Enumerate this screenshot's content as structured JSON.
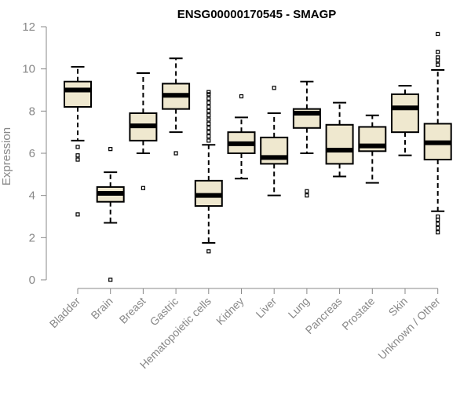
{
  "chart_data": {
    "type": "box",
    "title": "ENSG00000170545 - SMAGP",
    "xlabel": "",
    "ylabel": "Expression",
    "ylim": [
      0,
      12
    ],
    "yticks": [
      0,
      2,
      4,
      6,
      8,
      10,
      12
    ],
    "grid": false,
    "categories": [
      "Bladder",
      "Brain",
      "Breast",
      "Gastric",
      "Hematopoietic cells",
      "Kidney",
      "Liver",
      "Lung",
      "Pancreas",
      "Prostate",
      "Skin",
      "Unknown / Other"
    ],
    "boxes": [
      {
        "category": "Bladder",
        "min": 6.6,
        "q1": 8.2,
        "median": 9.0,
        "q3": 9.4,
        "max": 10.1,
        "outliers": [
          3.1,
          5.7,
          5.9,
          6.3
        ]
      },
      {
        "category": "Brain",
        "min": 2.7,
        "q1": 3.7,
        "median": 4.1,
        "q3": 4.4,
        "max": 5.1,
        "outliers": [
          0.0,
          6.2
        ]
      },
      {
        "category": "Breast",
        "min": 6.0,
        "q1": 6.6,
        "median": 7.3,
        "q3": 7.9,
        "max": 9.8,
        "outliers": [
          4.35
        ]
      },
      {
        "category": "Gastric",
        "min": 7.0,
        "q1": 8.1,
        "median": 8.75,
        "q3": 9.3,
        "max": 10.5,
        "outliers": [
          6.0
        ]
      },
      {
        "category": "Hematopoietic cells",
        "min": 1.75,
        "q1": 3.5,
        "median": 4.0,
        "q3": 4.7,
        "max": 6.4,
        "outliers": [
          1.35,
          6.6,
          6.8,
          7.0,
          7.2,
          7.4,
          7.6,
          7.8,
          8.0,
          8.2,
          8.4,
          8.6,
          8.8,
          8.9
        ]
      },
      {
        "category": "Kidney",
        "min": 4.8,
        "q1": 6.0,
        "median": 6.45,
        "q3": 7.0,
        "max": 7.7,
        "outliers": [
          8.7
        ]
      },
      {
        "category": "Liver",
        "min": 4.0,
        "q1": 5.5,
        "median": 5.8,
        "q3": 6.75,
        "max": 7.9,
        "outliers": [
          9.1
        ]
      },
      {
        "category": "Lung",
        "min": 6.0,
        "q1": 7.2,
        "median": 7.9,
        "q3": 8.1,
        "max": 9.4,
        "outliers": [
          4.0,
          4.2
        ]
      },
      {
        "category": "Pancreas",
        "min": 4.9,
        "q1": 5.5,
        "median": 6.15,
        "q3": 7.35,
        "max": 8.4,
        "outliers": []
      },
      {
        "category": "Prostate",
        "min": 4.6,
        "q1": 6.1,
        "median": 6.35,
        "q3": 7.25,
        "max": 7.8,
        "outliers": []
      },
      {
        "category": "Skin",
        "min": 5.9,
        "q1": 7.0,
        "median": 8.15,
        "q3": 8.8,
        "max": 9.2,
        "outliers": []
      },
      {
        "category": "Unknown / Other",
        "min": 3.25,
        "q1": 5.7,
        "median": 6.5,
        "q3": 7.4,
        "max": 9.95,
        "outliers": [
          2.25,
          2.45,
          2.65,
          2.85,
          3.0,
          10.2,
          10.4,
          10.55,
          10.8,
          11.65
        ]
      }
    ]
  }
}
